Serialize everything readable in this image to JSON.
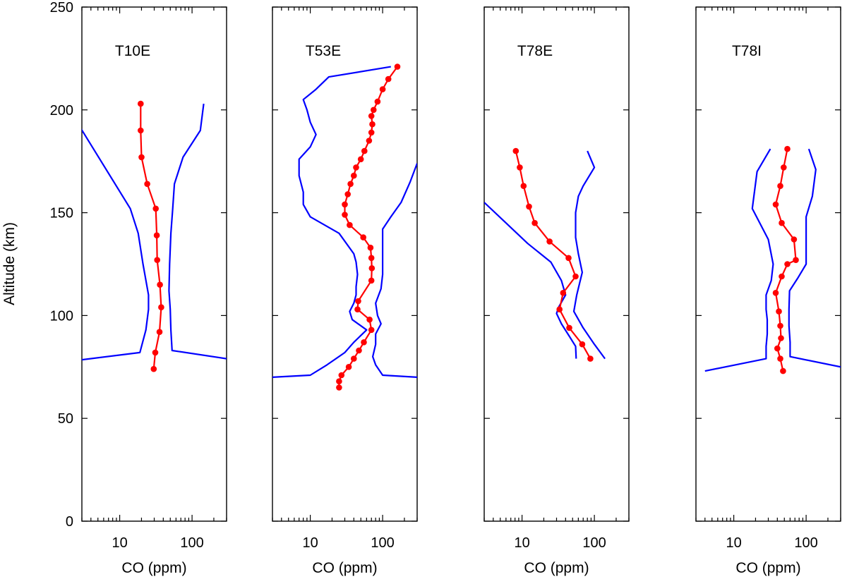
{
  "chart_data": {
    "type": "line",
    "ylabel": "Altitude (km)",
    "ylim": [
      0,
      250
    ],
    "yticks": [
      0,
      50,
      100,
      150,
      200,
      250
    ],
    "xscale": "log",
    "xlim": [
      3,
      300
    ],
    "xtick_labels": [
      {
        "value": 10,
        "label": "10"
      },
      {
        "value": 100,
        "label": "100"
      }
    ],
    "colors": {
      "profile": "#ff0000",
      "bounds": "#0000ff"
    },
    "panels": [
      {
        "title": "T10E",
        "xlabel": "CO (ppm)",
        "profile": [
          [
            29.5,
            74
          ],
          [
            31,
            82
          ],
          [
            35.5,
            92
          ],
          [
            37.5,
            104
          ],
          [
            36,
            115
          ],
          [
            33,
            127
          ],
          [
            32.5,
            139
          ],
          [
            31.5,
            152
          ],
          [
            24,
            164
          ],
          [
            20,
            177
          ],
          [
            19.5,
            190
          ],
          [
            19.5,
            203
          ]
        ],
        "lower": [
          [
            2.9,
            191
          ],
          [
            14,
            152
          ],
          [
            18,
            140
          ],
          [
            21,
            125
          ],
          [
            25,
            110
          ],
          [
            25,
            103
          ],
          [
            23,
            93
          ],
          [
            19,
            82
          ],
          [
            3,
            78.5
          ]
        ],
        "upper": [
          [
            145,
            203
          ],
          [
            130,
            190
          ],
          [
            75,
            177
          ],
          [
            57,
            164
          ],
          [
            54,
            152
          ],
          [
            51,
            140
          ],
          [
            49,
            125
          ],
          [
            48,
            112
          ],
          [
            50,
            103
          ],
          [
            51,
            93
          ],
          [
            53,
            83
          ],
          [
            300,
            79
          ]
        ]
      },
      {
        "title": "T53E",
        "xlabel": "CO (ppm)",
        "profile": [
          [
            25,
            65
          ],
          [
            25,
            68
          ],
          [
            27,
            71
          ],
          [
            34,
            75
          ],
          [
            40,
            79
          ],
          [
            47,
            83
          ],
          [
            55,
            87
          ],
          [
            70,
            93
          ],
          [
            66,
            98
          ],
          [
            45,
            103
          ],
          [
            46,
            107
          ],
          [
            70,
            117
          ],
          [
            71,
            123
          ],
          [
            70,
            128
          ],
          [
            68,
            133
          ],
          [
            54,
            138
          ],
          [
            35,
            144
          ],
          [
            30,
            149
          ],
          [
            30,
            154
          ],
          [
            33,
            159
          ],
          [
            36,
            164
          ],
          [
            40,
            168
          ],
          [
            43,
            172
          ],
          [
            50,
            176
          ],
          [
            56,
            180
          ],
          [
            65,
            185
          ],
          [
            70,
            189
          ],
          [
            72,
            193
          ],
          [
            70,
            197
          ],
          [
            75,
            200
          ],
          [
            85,
            204
          ],
          [
            100,
            210
          ],
          [
            120,
            215
          ],
          [
            160,
            221
          ]
        ],
        "lower": [
          [
            3,
            70
          ],
          [
            10,
            71
          ],
          [
            17,
            76
          ],
          [
            30,
            82
          ],
          [
            40,
            87
          ],
          [
            60,
            93
          ],
          [
            38,
            98
          ],
          [
            35,
            102
          ],
          [
            40,
            106
          ],
          [
            43,
            110
          ],
          [
            43,
            114
          ],
          [
            45,
            120
          ],
          [
            43,
            126
          ],
          [
            40,
            130
          ],
          [
            25,
            140
          ],
          [
            10,
            148
          ],
          [
            8,
            154
          ],
          [
            8,
            160
          ],
          [
            7,
            168
          ],
          [
            7,
            176
          ],
          [
            10,
            182
          ],
          [
            12,
            188
          ],
          [
            10,
            194
          ],
          [
            9,
            200
          ],
          [
            8,
            205
          ],
          [
            12,
            210
          ],
          [
            18,
            216
          ],
          [
            130,
            221
          ]
        ],
        "upper": [
          [
            300,
            70
          ],
          [
            100,
            71
          ],
          [
            80,
            76
          ],
          [
            73,
            80
          ],
          [
            80,
            86
          ],
          [
            80,
            91
          ],
          [
            95,
            96
          ],
          [
            85,
            100
          ],
          [
            80,
            106
          ],
          [
            95,
            113
          ],
          [
            100,
            120
          ],
          [
            100,
            128
          ],
          [
            100,
            136
          ],
          [
            100,
            142
          ],
          [
            130,
            148
          ],
          [
            180,
            155
          ],
          [
            240,
            165
          ],
          [
            300,
            174
          ]
        ]
      },
      {
        "title": "T78E",
        "xlabel": "CO (ppm)",
        "profile": [
          [
            88,
            79
          ],
          [
            68,
            86
          ],
          [
            45,
            94
          ],
          [
            33,
            103
          ],
          [
            37,
            111
          ],
          [
            55,
            119
          ],
          [
            44,
            128
          ],
          [
            24,
            136
          ],
          [
            15,
            145
          ],
          [
            12.5,
            153
          ],
          [
            10.5,
            163
          ],
          [
            9.3,
            172
          ],
          [
            8.2,
            180
          ]
        ],
        "lower": [
          [
            3,
            155
          ],
          [
            6,
            145
          ],
          [
            12,
            135
          ],
          [
            25,
            126
          ],
          [
            35,
            117
          ],
          [
            40,
            110
          ],
          [
            32,
            104
          ],
          [
            30,
            101
          ],
          [
            35,
            96
          ],
          [
            45,
            90
          ],
          [
            55,
            85
          ],
          [
            56,
            79
          ]
        ],
        "upper": [
          [
            140,
            79
          ],
          [
            100,
            86
          ],
          [
            70,
            94
          ],
          [
            52,
            102
          ],
          [
            57,
            110
          ],
          [
            68,
            121
          ],
          [
            60,
            130
          ],
          [
            55,
            138
          ],
          [
            55,
            150
          ],
          [
            60,
            158
          ],
          [
            70,
            163
          ],
          [
            100,
            172
          ],
          [
            80,
            180
          ]
        ]
      },
      {
        "title": "T78I",
        "xlabel": "CO (ppm)",
        "profile": [
          [
            48,
            73
          ],
          [
            44,
            79
          ],
          [
            40,
            84
          ],
          [
            45,
            89
          ],
          [
            44,
            95
          ],
          [
            42,
            102
          ],
          [
            38,
            111
          ],
          [
            46,
            119
          ],
          [
            55,
            125
          ],
          [
            72,
            127
          ],
          [
            68,
            137
          ],
          [
            46,
            145
          ],
          [
            38,
            154
          ],
          [
            44,
            163
          ],
          [
            49,
            172
          ],
          [
            55,
            181
          ]
        ],
        "lower": [
          [
            4,
            73
          ],
          [
            28,
            79
          ],
          [
            28,
            85
          ],
          [
            29,
            91
          ],
          [
            29,
            98
          ],
          [
            28,
            103
          ],
          [
            28,
            110
          ],
          [
            33,
            117
          ],
          [
            35,
            125
          ],
          [
            30,
            137
          ],
          [
            18,
            152
          ],
          [
            21,
            170
          ],
          [
            32,
            181
          ]
        ],
        "upper": [
          [
            300,
            75
          ],
          [
            60,
            80
          ],
          [
            60,
            87
          ],
          [
            58,
            95
          ],
          [
            58,
            103
          ],
          [
            59,
            112
          ],
          [
            76,
            118
          ],
          [
            100,
            125
          ],
          [
            100,
            136
          ],
          [
            100,
            148
          ],
          [
            122,
            158
          ],
          [
            136,
            171
          ],
          [
            109,
            181
          ]
        ]
      }
    ]
  }
}
